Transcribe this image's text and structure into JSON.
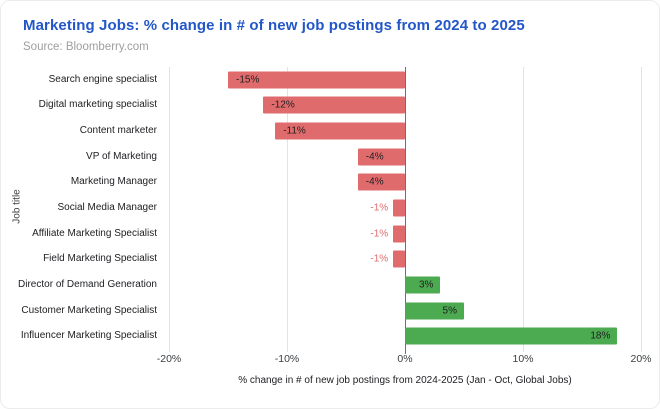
{
  "header": {
    "title": "Marketing Jobs: % change in # of new job postings from 2024 to 2025",
    "source": "Source: Bloomberry.com"
  },
  "chart_data": {
    "type": "bar",
    "orientation": "horizontal",
    "title": "Marketing Jobs: % change in # of new job postings from 2024 to 2025",
    "subtitle": "Source: Bloomberry.com",
    "categories": [
      "Search engine specialist",
      "Digital marketing specialist",
      "Content marketer",
      "VP of Marketing",
      "Marketing Manager",
      "Social Media Manager",
      "Affiliate Marketing Specialist",
      "Field Marketing Specialist",
      "Director of Demand Generation",
      "Customer Marketing Specialist",
      "Influencer Marketing Specialist"
    ],
    "values": [
      -15,
      -12,
      -11,
      -4,
      -4,
      -1,
      -1,
      -1,
      3,
      5,
      18
    ],
    "value_labels": [
      "-15%",
      "-12%",
      "-11%",
      "-4%",
      "-4%",
      "-1%",
      "-1%",
      "-1%",
      "3%",
      "5%",
      "18%"
    ],
    "xlabel": "% change in # of new job postings from 2024-2025 (Jan - Oct, Global Jobs)",
    "ylabel": "Job title",
    "xlim": [
      -20,
      20
    ],
    "ticks": [
      {
        "value": -20,
        "label": "-20%"
      },
      {
        "value": -10,
        "label": "-10%"
      },
      {
        "value": 0,
        "label": "0%"
      },
      {
        "value": 10,
        "label": "10%"
      },
      {
        "value": 20,
        "label": "20%"
      }
    ],
    "grid": "vertical",
    "legend": "none",
    "colors": {
      "negative": "#e06b6d",
      "positive": "#4caa51",
      "gridline": "#e3e3e3",
      "zero_line": "#6f6f6f",
      "title": "#2357c8",
      "source": "#9e9e9e"
    }
  }
}
